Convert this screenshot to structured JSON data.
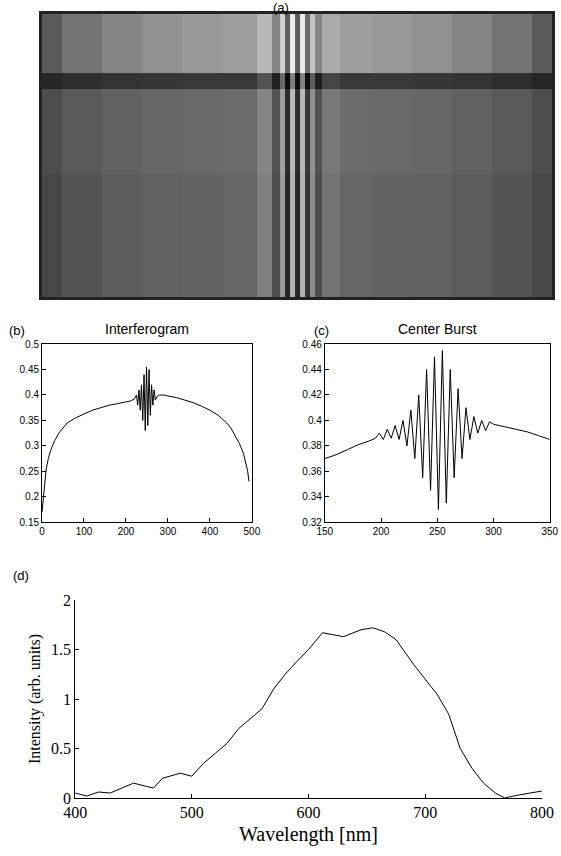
{
  "chart_data": [
    {
      "type": "heatmap",
      "label": "(a)",
      "tick_labels": false,
      "x_edges": [
        0,
        20,
        60,
        100,
        140,
        180,
        215,
        230,
        238,
        243,
        248,
        253,
        258,
        263,
        268,
        273,
        280,
        298,
        330,
        370,
        410,
        450,
        490,
        510
      ],
      "y_edges": [
        0,
        55,
        70,
        150,
        265
      ],
      "cells": [
        [
          0.35,
          0.45,
          0.52,
          0.57,
          0.6,
          0.62,
          0.72,
          0.52,
          0.82,
          0.37,
          0.92,
          0.37,
          0.92,
          0.42,
          0.77,
          0.52,
          0.67,
          0.62,
          0.6,
          0.57,
          0.52,
          0.45,
          0.35
        ],
        [
          0.15,
          0.18,
          0.2,
          0.21,
          0.22,
          0.22,
          0.32,
          0.12,
          0.42,
          0.05,
          0.5,
          0.05,
          0.5,
          0.05,
          0.37,
          0.12,
          0.27,
          0.22,
          0.22,
          0.21,
          0.2,
          0.18,
          0.15
        ],
        [
          0.3,
          0.35,
          0.38,
          0.4,
          0.41,
          0.42,
          0.52,
          0.32,
          0.62,
          0.17,
          0.72,
          0.17,
          0.72,
          0.22,
          0.57,
          0.32,
          0.47,
          0.42,
          0.41,
          0.4,
          0.38,
          0.35,
          0.3
        ],
        [
          0.28,
          0.33,
          0.36,
          0.38,
          0.39,
          0.4,
          0.5,
          0.3,
          0.6,
          0.15,
          0.7,
          0.15,
          0.7,
          0.2,
          0.55,
          0.3,
          0.45,
          0.4,
          0.39,
          0.38,
          0.36,
          0.33,
          0.28
        ]
      ],
      "color_range": [
        0,
        1
      ],
      "xlim": [
        0,
        510
      ],
      "ylim": [
        265,
        0
      ]
    },
    {
      "type": "line",
      "label": "(b)",
      "title": "Interferogram",
      "color": "#000000",
      "x": [
        0,
        3,
        6,
        10,
        15,
        20,
        30,
        40,
        50,
        60,
        80,
        100,
        120,
        140,
        160,
        180,
        200,
        210,
        220,
        225,
        228,
        231,
        234,
        237,
        240,
        243,
        246,
        249,
        252,
        255,
        258,
        261,
        264,
        267,
        270,
        275,
        280,
        290,
        300,
        320,
        340,
        360,
        380,
        400,
        420,
        440,
        450,
        460,
        470,
        480,
        485,
        490,
        493
      ],
      "values": [
        0.17,
        0.2,
        0.23,
        0.255,
        0.275,
        0.29,
        0.31,
        0.325,
        0.335,
        0.345,
        0.355,
        0.363,
        0.37,
        0.375,
        0.38,
        0.383,
        0.386,
        0.388,
        0.392,
        0.4,
        0.38,
        0.41,
        0.37,
        0.42,
        0.35,
        0.44,
        0.33,
        0.455,
        0.34,
        0.45,
        0.36,
        0.42,
        0.38,
        0.41,
        0.39,
        0.398,
        0.4,
        0.4,
        0.398,
        0.395,
        0.39,
        0.385,
        0.378,
        0.37,
        0.36,
        0.345,
        0.335,
        0.32,
        0.305,
        0.285,
        0.27,
        0.25,
        0.23
      ],
      "xlim": [
        0,
        500
      ],
      "xticks": [
        0,
        100,
        200,
        300,
        400,
        500
      ],
      "ylim": [
        0.15,
        0.5
      ],
      "yticks": [
        0.15,
        0.2,
        0.25,
        0.3,
        0.35,
        0.4,
        0.45,
        0.5
      ]
    },
    {
      "type": "line",
      "label": "(c)",
      "title": "Center Burst",
      "color": "#000000",
      "x": [
        150,
        160,
        170,
        180,
        190,
        195,
        198.5,
        202,
        205.5,
        209,
        212.5,
        216,
        219.5,
        223,
        226.5,
        230,
        233.5,
        237,
        240.5,
        244,
        247.5,
        251,
        254.5,
        258,
        261.5,
        265,
        268.5,
        272,
        275.5,
        279,
        282.5,
        286,
        289.5,
        293,
        296.5,
        300,
        310,
        320,
        330,
        340,
        350
      ],
      "values": [
        0.37,
        0.373,
        0.377,
        0.381,
        0.384,
        0.386,
        0.39,
        0.385,
        0.393,
        0.386,
        0.396,
        0.385,
        0.4,
        0.38,
        0.408,
        0.37,
        0.42,
        0.355,
        0.44,
        0.345,
        0.45,
        0.33,
        0.455,
        0.335,
        0.44,
        0.355,
        0.425,
        0.37,
        0.41,
        0.385,
        0.403,
        0.39,
        0.4,
        0.392,
        0.399,
        0.397,
        0.395,
        0.393,
        0.391,
        0.388,
        0.385
      ],
      "xlim": [
        150,
        350
      ],
      "xticks": [
        150,
        200,
        250,
        300,
        350
      ],
      "ylim": [
        0.32,
        0.46
      ],
      "yticks": [
        0.32,
        0.34,
        0.36,
        0.38,
        0.4,
        0.42,
        0.44,
        0.46
      ]
    },
    {
      "type": "line",
      "label": "(d)",
      "x_label": "Wavelength [nm]",
      "y_label": "Intensity (arb. units)",
      "color": "#000000",
      "x": [
        400,
        410,
        420,
        430,
        440,
        450,
        460,
        467,
        475,
        490,
        500,
        510,
        520,
        530,
        540,
        550,
        560,
        570,
        580,
        590,
        600,
        612,
        620,
        630,
        645,
        655,
        665,
        675,
        690,
        700,
        710,
        720,
        730,
        740,
        750,
        760,
        768,
        780,
        790,
        800
      ],
      "values": [
        0.05,
        0.02,
        0.06,
        0.05,
        0.1,
        0.15,
        0.12,
        0.1,
        0.2,
        0.25,
        0.22,
        0.35,
        0.45,
        0.55,
        0.7,
        0.8,
        0.9,
        1.1,
        1.25,
        1.38,
        1.5,
        1.67,
        1.65,
        1.63,
        1.7,
        1.72,
        1.68,
        1.6,
        1.35,
        1.2,
        1.05,
        0.85,
        0.5,
        0.3,
        0.15,
        0.05,
        0,
        0.03,
        0.05,
        0.07
      ],
      "xlim": [
        400,
        800
      ],
      "xticks": [
        400,
        500,
        600,
        700,
        800
      ],
      "ylim": [
        0,
        2
      ],
      "yticks": [
        0,
        0.5,
        1,
        1.5,
        2
      ]
    }
  ]
}
